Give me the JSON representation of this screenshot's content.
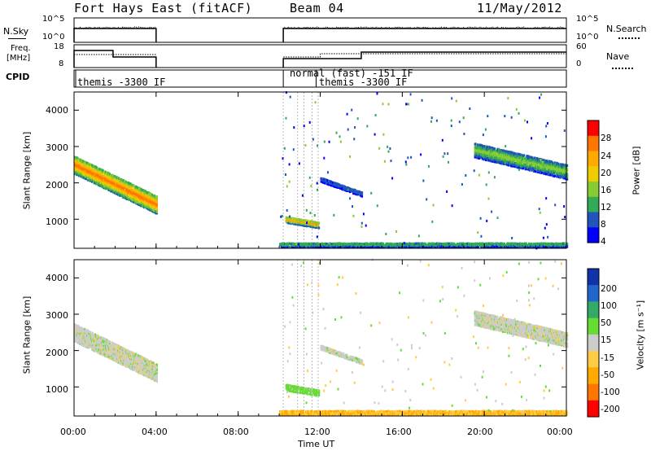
{
  "header": {
    "radar": "Fort Hays East (fitACF)",
    "beam": "Beam 04",
    "date": "11/May/2012"
  },
  "param_panels": {
    "nsky_label": "N.Sky",
    "nsky_ticks": [
      "10^5",
      "10^0"
    ],
    "nsearch_label": "N.Search",
    "nsearch_ticks": [
      "10^5",
      "10^0"
    ],
    "freq_label_1": "Freq.",
    "freq_label_2": "[MHz]",
    "freq_ticks": [
      "18",
      "8"
    ],
    "nave_label": "Nave",
    "nave_ticks": [
      "60",
      "0"
    ],
    "cpid_label": "CPID",
    "cpid_entries": [
      {
        "text": "themis -3300 IF",
        "time_h": 0.0
      },
      {
        "text": "normal (fast) -151 IF",
        "time_h": 10.2
      },
      {
        "text": "themis -3300 IF",
        "time_h": 11.8
      }
    ]
  },
  "colorbars": {
    "power": {
      "label": "Power [dB]",
      "ticks": [
        "28",
        "24",
        "20",
        "16",
        "12",
        "8",
        "4"
      ],
      "colors": [
        "#ff0000",
        "#ff7700",
        "#ffaa00",
        "#eecc00",
        "#88cc33",
        "#33aa55",
        "#2255bb",
        "#0000ff"
      ]
    },
    "velocity": {
      "label": "Velocity [m s⁻¹]",
      "ticks": [
        "200",
        "100",
        "50",
        "15",
        "-15",
        "-50",
        "-100",
        "-200"
      ],
      "colors": [
        "#1133aa",
        "#2266cc",
        "#33aa66",
        "#66dd33",
        "#cccccc",
        "#ffcc44",
        "#ffaa00",
        "#ff7700",
        "#ff0000"
      ]
    }
  },
  "chart_data": [
    {
      "type": "heatmap",
      "title": "Power",
      "ylabel": "Slant Range [km]",
      "xlabel": "",
      "x_range_h": [
        0,
        24
      ],
      "ylim": [
        200,
        4500
      ],
      "yticks": [
        "4000",
        "3000",
        "2000",
        "1000"
      ],
      "ytick_values": [
        4000,
        3000,
        2000,
        1000
      ],
      "xtick_values_h": [
        0,
        4,
        8,
        12,
        16,
        20,
        24
      ],
      "quantity": "Power [dB]",
      "value_range": [
        0,
        30
      ],
      "features": [
        {
          "t0": 0.0,
          "t1": 4.0,
          "r0": 2500,
          "r1": 1400,
          "width_km": 500,
          "value": 22
        },
        {
          "t0": 10.3,
          "t1": 11.9,
          "r0": 1000,
          "r1": 850,
          "width_km": 200,
          "value": 18
        },
        {
          "t0": 12.0,
          "t1": 14.0,
          "r0": 2100,
          "r1": 1700,
          "width_km": 150,
          "value": 6
        },
        {
          "t0": 19.5,
          "t1": 24.0,
          "r0": 2900,
          "r1": 2300,
          "width_km": 400,
          "value": 12
        },
        {
          "t0": 10.0,
          "t1": 24.0,
          "r0": 300,
          "r1": 300,
          "width_km": 150,
          "value": 10
        }
      ]
    },
    {
      "type": "heatmap",
      "title": "Velocity",
      "ylabel": "Slant Range [km]",
      "xlabel": "Time UT",
      "x_range_h": [
        0,
        24
      ],
      "ylim": [
        200,
        4500
      ],
      "yticks": [
        "4000",
        "3000",
        "2000",
        "1000"
      ],
      "ytick_values": [
        4000,
        3000,
        2000,
        1000
      ],
      "xticks": [
        "00:00",
        "04:00",
        "08:00",
        "12:00",
        "16:00",
        "20:00",
        "00:00"
      ],
      "xtick_values_h": [
        0,
        4,
        8,
        12,
        16,
        20,
        24
      ],
      "quantity": "Velocity [m s-1]",
      "value_range": [
        -200,
        200
      ],
      "features": [
        {
          "t0": 0.0,
          "t1": 4.0,
          "r0": 2500,
          "r1": 1400,
          "width_km": 500,
          "value": 0
        },
        {
          "t0": 10.3,
          "t1": 11.9,
          "r0": 1000,
          "r1": 850,
          "width_km": 200,
          "value": 30
        },
        {
          "t0": 12.0,
          "t1": 14.0,
          "r0": 2100,
          "r1": 1700,
          "width_km": 150,
          "value": 0
        },
        {
          "t0": 19.5,
          "t1": 24.0,
          "r0": 2900,
          "r1": 2300,
          "width_km": 400,
          "value": 0
        },
        {
          "t0": 10.0,
          "t1": 24.0,
          "r0": 300,
          "r1": 300,
          "width_km": 150,
          "value": -50
        }
      ]
    }
  ]
}
